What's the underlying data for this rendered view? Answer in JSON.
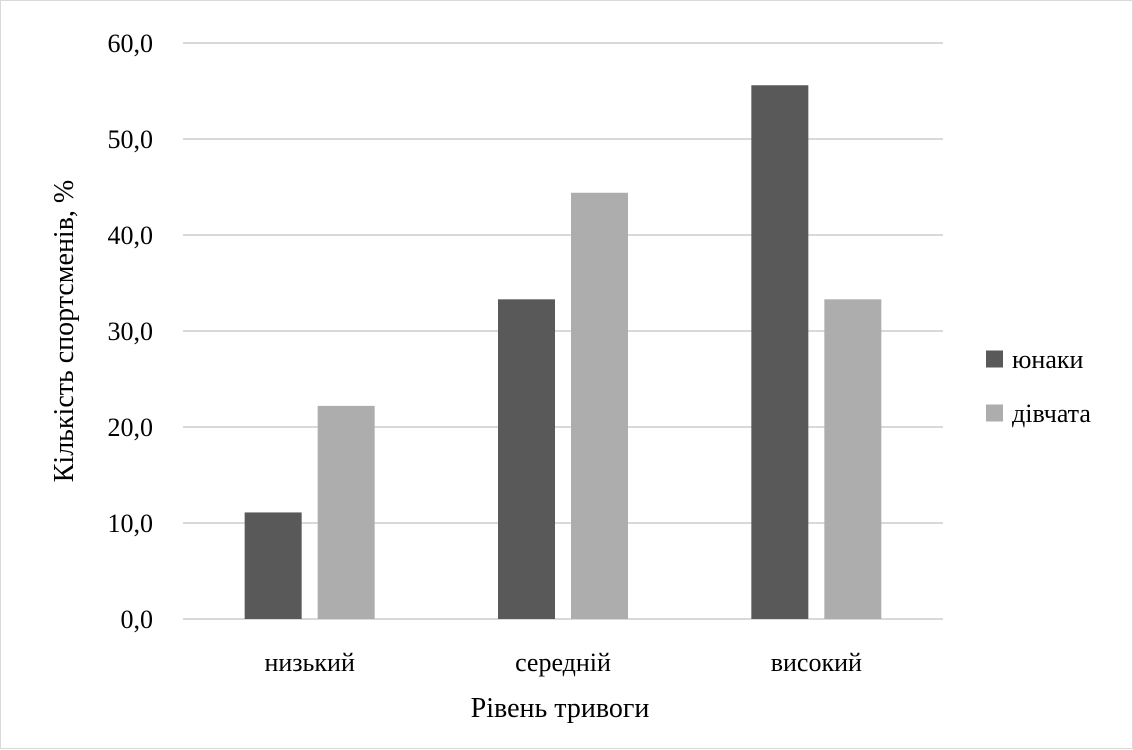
{
  "chart_data": {
    "type": "bar",
    "categories": [
      "низький",
      "середній",
      "високий"
    ],
    "series": [
      {
        "name": "юнаки",
        "values": [
          11.1,
          33.3,
          55.6
        ],
        "color": "#595959"
      },
      {
        "name": "дівчата",
        "values": [
          22.2,
          44.4,
          33.3
        ],
        "color": "#adadad"
      }
    ],
    "xlabel": "Рівень тривоги",
    "ylabel": "Кількість спортсменів, %",
    "ylim": [
      0,
      60
    ],
    "yticks": [
      "0,0",
      "10,0",
      "20,0",
      "30,0",
      "40,0",
      "50,0",
      "60,0"
    ],
    "grid": true,
    "gridline_color": "#d9d9d9",
    "legend_position": "right"
  }
}
